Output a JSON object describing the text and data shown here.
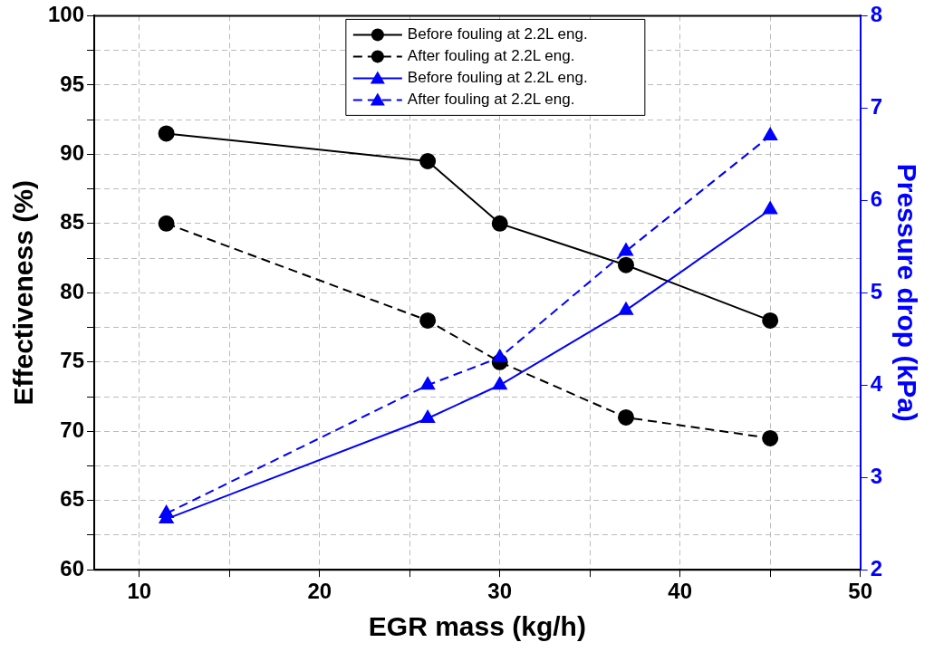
{
  "chart_data": {
    "type": "line",
    "xlabel": "EGR mass (kg/h)",
    "ylabel": "Effectiveness (%)",
    "y2label": "Pressure drop (kPa)",
    "xlim": [
      7.5,
      50
    ],
    "xticks": [
      10,
      {
        "value": 15,
        "label": null
      },
      20,
      {
        "value": 25,
        "label": null
      },
      30,
      {
        "value": 35,
        "label": null
      },
      40,
      {
        "value": 45,
        "label": null
      },
      50
    ],
    "ylim": [
      60,
      100
    ],
    "yticks": [
      60,
      {
        "value": 62.5,
        "label": null
      },
      65,
      {
        "value": 67.5,
        "label": null
      },
      70,
      {
        "value": 72.5,
        "label": null
      },
      75,
      {
        "value": 77.5,
        "label": null
      },
      80,
      {
        "value": 82.5,
        "label": null
      },
      85,
      {
        "value": 87.5,
        "label": null
      },
      90,
      {
        "value": 92.5,
        "label": null
      },
      95,
      {
        "value": 97.5,
        "label": null
      },
      100
    ],
    "y2lim": [
      2,
      8
    ],
    "y2ticks": [
      2,
      3,
      4,
      5,
      6,
      7,
      8
    ],
    "grid": true,
    "legend": "top",
    "series": [
      {
        "name": "Before fouling at 2.2L eng.",
        "color": "#000000",
        "x": [
          11.5,
          26,
          30,
          37,
          45
        ],
        "values": [
          91.5,
          89.5,
          85,
          82,
          78
        ],
        "marker": "circle",
        "line_style": "solid"
      },
      {
        "name": "After fouling at 2.2L eng.",
        "color": "#000000",
        "x": [
          11.5,
          26,
          30,
          37,
          45
        ],
        "values": [
          85,
          78,
          75,
          71,
          69.5
        ],
        "marker": "circle",
        "line_style": "dashed"
      },
      {
        "name": "Before fouling at 2.2L eng.",
        "color": "#0000ff",
        "x": [
          11.5,
          26,
          30,
          37,
          45
        ],
        "values": [
          2.55,
          3.64,
          4.0,
          4.81,
          5.9
        ],
        "marker": "triangle",
        "line_style": "solid",
        "axis": "y2"
      },
      {
        "name": "After fouling at 2.2L eng.",
        "color": "#0000ff",
        "x": [
          11.5,
          26,
          30,
          37,
          45
        ],
        "values": [
          2.61,
          4.0,
          4.3,
          5.45,
          6.7
        ],
        "marker": "triangle",
        "line_style": "dashed",
        "axis": "y2"
      }
    ]
  }
}
